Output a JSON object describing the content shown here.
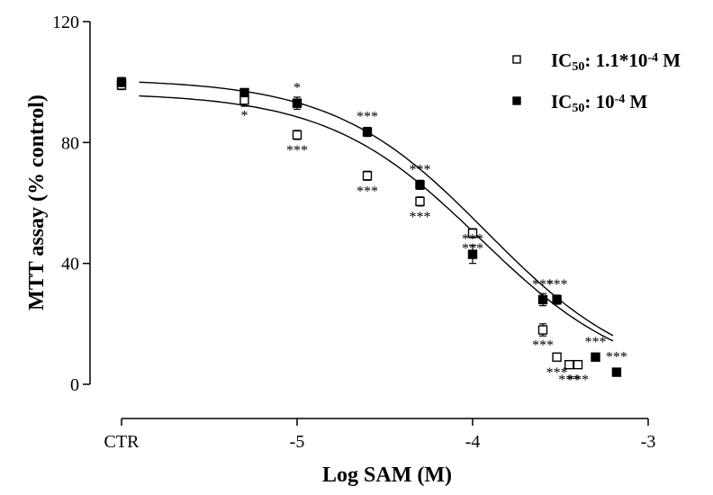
{
  "chart_data": {
    "type": "scatter",
    "xlabel": "Log SAM (M)",
    "ylabel": "MTT assay (% control)",
    "ylim": [
      0,
      120
    ],
    "yticks": [
      0,
      40,
      80,
      120
    ],
    "xlim": [
      -5.9,
      -3
    ],
    "xtick_labels": [
      "CTR",
      "-5",
      "-4",
      "-3"
    ],
    "grid": false,
    "legend_position": "top-right",
    "series": [
      {
        "legend": "IC50: 1.1*10-4 M",
        "legend_parts": {
          "base": "IC",
          "sub": "50",
          "mid": ": 1.1*10",
          "sup": "-4",
          "tail": " M"
        },
        "marker": "open-square",
        "ic50": 0.00011,
        "fit": {
          "top": 96.5,
          "bottom": 0,
          "logIC50": -3.958
        },
        "points": [
          {
            "x": "CTR",
            "y": 99,
            "err": 1.5,
            "sig": ""
          },
          {
            "x": -5.3,
            "y": 94,
            "err": 2,
            "sig": "*"
          },
          {
            "x": -5.0,
            "y": 82.5,
            "err": 1.5,
            "sig": "***"
          },
          {
            "x": -4.6,
            "y": 69,
            "err": 1.5,
            "sig": "***"
          },
          {
            "x": -4.3,
            "y": 60.5,
            "err": 1.5,
            "sig": "***"
          },
          {
            "x": -4.0,
            "y": 50,
            "err": 1.5,
            "sig": "***"
          },
          {
            "x": -3.6,
            "y": 18,
            "err": 2,
            "sig": "***"
          },
          {
            "x": -3.52,
            "y": 9,
            "err": 0.5,
            "sig": "***"
          },
          {
            "x": -3.45,
            "y": 6.5,
            "err": 0.5,
            "sig": "***"
          },
          {
            "x": -3.4,
            "y": 6.5,
            "err": 0.5,
            "sig": "***"
          }
        ]
      },
      {
        "legend": "IC50: 10-4 M",
        "legend_parts": {
          "base": "IC",
          "sub": "50",
          "mid": ": 10",
          "sup": "-4",
          "tail": " M"
        },
        "marker": "filled-square",
        "ic50": 0.0001,
        "fit": {
          "top": 101,
          "bottom": 0,
          "logIC50": -3.922
        },
        "points": [
          {
            "x": "CTR",
            "y": 100,
            "err": 1.5,
            "sig": ""
          },
          {
            "x": -5.3,
            "y": 96.5,
            "err": 1,
            "sig": ""
          },
          {
            "x": -5.0,
            "y": 93,
            "err": 2,
            "sig": "*"
          },
          {
            "x": -4.6,
            "y": 83.5,
            "err": 1.5,
            "sig": "***"
          },
          {
            "x": -4.3,
            "y": 66,
            "err": 1.5,
            "sig": "***"
          },
          {
            "x": -4.0,
            "y": 43,
            "err": 3,
            "sig": "***"
          },
          {
            "x": -3.6,
            "y": 28,
            "err": 2,
            "sig": "***"
          },
          {
            "x": -3.52,
            "y": 28,
            "err": 1.5,
            "sig": "***"
          },
          {
            "x": -3.3,
            "y": 9,
            "err": 1,
            "sig": "***"
          },
          {
            "x": -3.18,
            "y": 4,
            "err": 0.5,
            "sig": "***"
          }
        ]
      }
    ]
  }
}
